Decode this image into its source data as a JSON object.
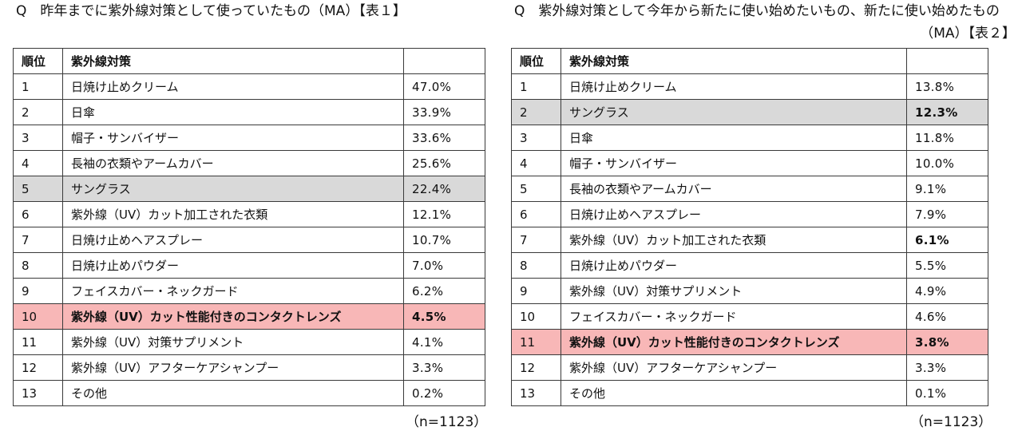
{
  "table1": {
    "title": "Q　昨年までに紫外線対策として使っていたもの（MA）【表１】",
    "headers": {
      "rank": "順位",
      "item": "紫外線対策",
      "value": ""
    },
    "rows": [
      {
        "rank": "1",
        "item": "日焼け止めクリーム",
        "value": "47.0%"
      },
      {
        "rank": "2",
        "item": "日傘",
        "value": "33.9%"
      },
      {
        "rank": "3",
        "item": "帽子・サンバイザー",
        "value": "33.6%"
      },
      {
        "rank": "4",
        "item": "長袖の衣類やアームカバー",
        "value": "25.6%"
      },
      {
        "rank": "5",
        "item": "サングラス",
        "value": "22.4%"
      },
      {
        "rank": "6",
        "item": "紫外線（UV）カット加工された衣類",
        "value": "12.1%"
      },
      {
        "rank": "7",
        "item": "日焼け止めヘアスプレー",
        "value": "10.7%"
      },
      {
        "rank": "8",
        "item": "日焼け止めパウダー",
        "value": "7.0%"
      },
      {
        "rank": "9",
        "item": "フェイスカバー・ネックガード",
        "value": "6.2%"
      },
      {
        "rank": "10",
        "item": "紫外線（UV）カット性能付きのコンタクトレンズ",
        "value": "4.5%"
      },
      {
        "rank": "11",
        "item": "紫外線（UV）対策サプリメント",
        "value": "4.1%"
      },
      {
        "rank": "12",
        "item": "紫外線（UV）アフターケアシャンプー",
        "value": "3.3%"
      },
      {
        "rank": "13",
        "item": "その他",
        "value": "0.2%"
      }
    ],
    "note": "（n=1123）",
    "highlight_gray": "#d9d9d9",
    "highlight_pink": "#f8b7b7"
  },
  "table2": {
    "title_line1": "Q　紫外線対策として今年から新たに使い始めたいもの、新たに使い始めたもの",
    "title_line2": "（MA）【表２】",
    "headers": {
      "rank": "順位",
      "item": "紫外線対策",
      "value": ""
    },
    "rows": [
      {
        "rank": "1",
        "item": "日焼け止めクリーム",
        "value": "13.8%"
      },
      {
        "rank": "2",
        "item": "サングラス",
        "value": "12.3%"
      },
      {
        "rank": "3",
        "item": "日傘",
        "value": "11.8%"
      },
      {
        "rank": "4",
        "item": "帽子・サンバイザー",
        "value": "10.0%"
      },
      {
        "rank": "5",
        "item": "長袖の衣類やアームカバー",
        "value": "9.1%"
      },
      {
        "rank": "6",
        "item": "日焼け止めヘアスプレー",
        "value": "7.9%"
      },
      {
        "rank": "7",
        "item": "紫外線（UV）カット加工された衣類",
        "value": "6.1%"
      },
      {
        "rank": "8",
        "item": "日焼け止めパウダー",
        "value": "5.5%"
      },
      {
        "rank": "9",
        "item": "紫外線（UV）対策サプリメント",
        "value": "4.9%"
      },
      {
        "rank": "10",
        "item": "フェイスカバー・ネックガード",
        "value": "4.6%"
      },
      {
        "rank": "11",
        "item": "紫外線（UV）カット性能付きのコンタクトレンズ",
        "value": "3.8%"
      },
      {
        "rank": "12",
        "item": "紫外線（UV）アフターケアシャンプー",
        "value": "3.3%"
      },
      {
        "rank": "13",
        "item": "その他",
        "value": "0.1%"
      }
    ],
    "note": "（n=1123）"
  }
}
